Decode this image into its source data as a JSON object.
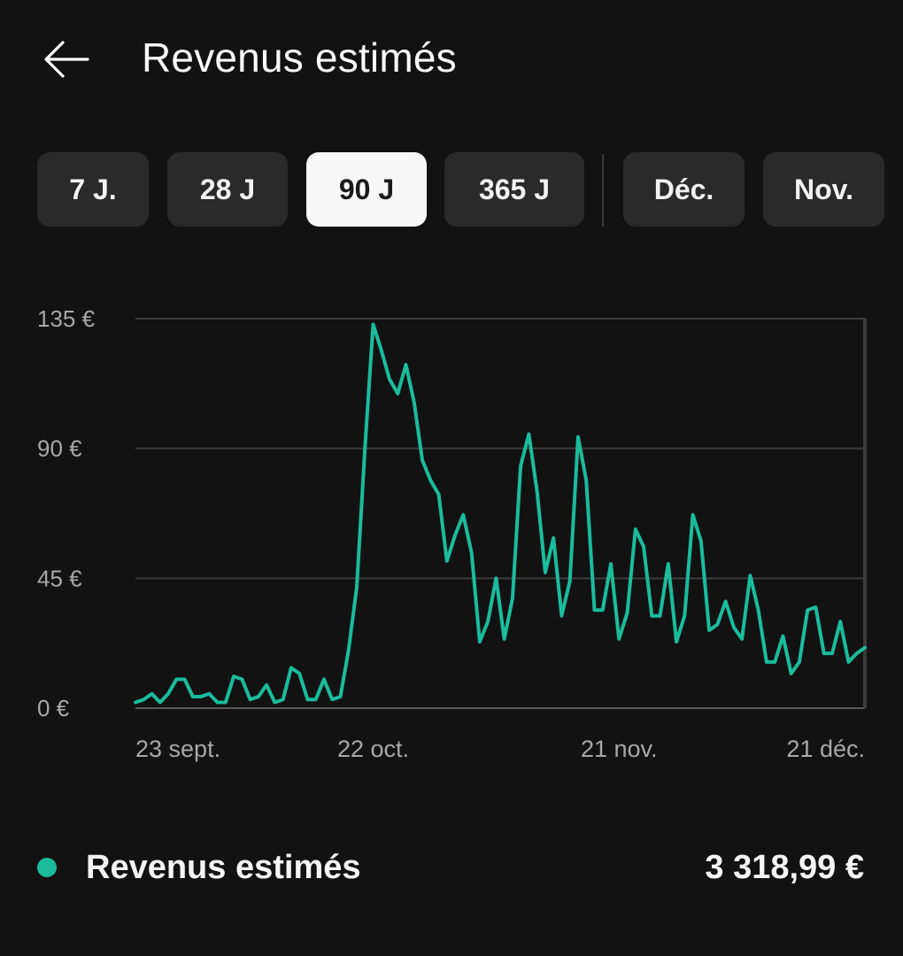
{
  "header": {
    "title": "Revenus estimés",
    "back_icon": "arrow-left-icon"
  },
  "ranges": {
    "selected": "90 J",
    "items": [
      {
        "label": "7 J."
      },
      {
        "label": "28 J"
      },
      {
        "label": "90 J"
      },
      {
        "label": "365 J"
      },
      {
        "label": "Déc."
      },
      {
        "label": "Nov."
      }
    ]
  },
  "colors": {
    "accent": "#1abc9c",
    "background": "#121212",
    "chip": "#2a2a2a",
    "chip_selected": "#f7f7f7"
  },
  "chart_data": {
    "type": "line",
    "ylim": [
      0,
      135
    ],
    "yticks": [
      "135 €",
      "90 €",
      "45 €",
      "0 €"
    ],
    "ytick_values": [
      135,
      90,
      45,
      0
    ],
    "xticks": [
      "23 sept.",
      "22 oct.",
      "21 nov.",
      "21 déc."
    ],
    "xtick_indices": [
      0,
      29,
      59,
      89
    ],
    "grid": true,
    "series": [
      {
        "values": [
          2,
          3,
          5,
          2,
          5,
          10,
          10,
          4,
          4,
          5,
          2,
          2,
          11,
          10,
          3,
          4,
          8,
          2,
          3,
          14,
          12,
          3,
          3,
          10,
          3,
          4,
          20,
          42,
          90,
          133,
          124,
          114,
          109,
          119,
          106,
          86,
          79,
          74,
          51,
          60,
          67,
          54,
          23,
          30,
          45,
          24,
          38,
          84,
          95,
          75,
          47,
          59,
          32,
          44,
          94,
          79,
          34,
          34,
          50,
          24,
          33,
          62,
          56,
          32,
          32,
          50,
          23,
          32,
          67,
          58,
          27,
          29,
          37,
          28,
          24,
          46,
          34,
          16,
          16,
          25,
          12,
          16,
          34,
          35,
          19,
          19,
          30,
          16,
          19,
          21
        ]
      }
    ]
  },
  "legend": {
    "label": "Revenus estimés",
    "total": "3 318,99 €"
  }
}
